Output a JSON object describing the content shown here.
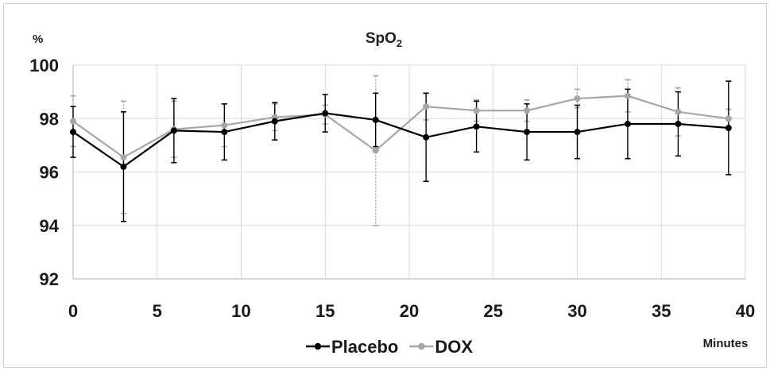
{
  "chart_data": {
    "type": "line",
    "title": "SpO",
    "title_subscript": "2",
    "y_unit": "%",
    "xlabel": "Minutes",
    "ylabel": "",
    "x": [
      0,
      3,
      6,
      9,
      12,
      15,
      18,
      21,
      24,
      27,
      30,
      33,
      36,
      39
    ],
    "xlim": [
      0,
      40
    ],
    "ylim": [
      92,
      100
    ],
    "x_ticks": [
      0,
      5,
      10,
      15,
      20,
      25,
      30,
      35,
      40
    ],
    "y_ticks": [
      92,
      94,
      96,
      98,
      100
    ],
    "grid": true,
    "legend_position": "bottom-center",
    "error_bars": true,
    "series": [
      {
        "name": "Placebo",
        "color": "#000000",
        "values": [
          97.5,
          96.2,
          97.55,
          97.5,
          97.9,
          98.2,
          97.95,
          97.3,
          97.7,
          97.5,
          97.5,
          97.8,
          97.8,
          97.65
        ],
        "error": [
          0.95,
          2.05,
          1.2,
          1.05,
          0.7,
          0.7,
          1.0,
          1.65,
          0.95,
          1.05,
          1.0,
          1.3,
          1.2,
          1.75
        ]
      },
      {
        "name": "DOX",
        "color": "#a6a6a6",
        "values": [
          97.9,
          96.55,
          97.6,
          97.75,
          98.05,
          98.15,
          96.8,
          98.45,
          98.3,
          98.3,
          98.75,
          98.85,
          98.25,
          98.0
        ],
        "error": [
          0.95,
          2.1,
          1.05,
          0.8,
          0.5,
          0.35,
          2.8,
          0.5,
          0.4,
          0.4,
          0.35,
          0.6,
          0.9,
          0.35
        ]
      }
    ]
  }
}
